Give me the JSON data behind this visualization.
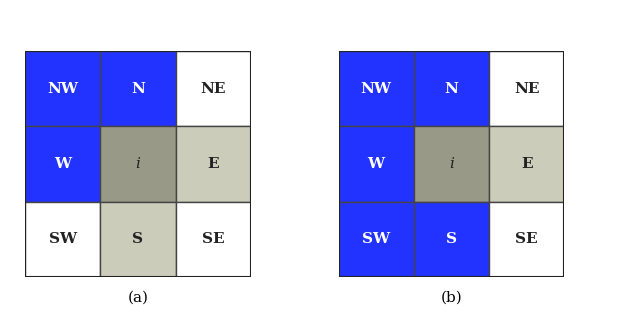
{
  "grids": [
    {
      "label": "(a)",
      "cells": [
        [
          "blue",
          "blue",
          "white"
        ],
        [
          "blue",
          "darkgray",
          "lightgray"
        ],
        [
          "white",
          "lightgray",
          "white"
        ]
      ],
      "labels": [
        [
          "NW",
          "N",
          "NE"
        ],
        [
          "W",
          "i",
          "E"
        ],
        [
          "SW",
          "S",
          "SE"
        ]
      ]
    },
    {
      "label": "(b)",
      "cells": [
        [
          "blue",
          "blue",
          "white"
        ],
        [
          "blue",
          "darkgray",
          "lightgray"
        ],
        [
          "blue",
          "blue",
          "white"
        ]
      ],
      "labels": [
        [
          "NW",
          "N",
          "NE"
        ],
        [
          "W",
          "i",
          "E"
        ],
        [
          "SW",
          "S",
          "SE"
        ]
      ]
    }
  ],
  "blue_color": "#2233ff",
  "darkgray_color": "#999988",
  "lightgray_color": "#ccccbb",
  "white_color": "#ffffff",
  "border_color": "#444444",
  "outer_border_color": "#222222",
  "cell_size": 1.0,
  "label_fontsize": 11,
  "caption_fontsize": 11,
  "background": "#ffffff",
  "fig_width": 6.27,
  "fig_height": 3.28
}
